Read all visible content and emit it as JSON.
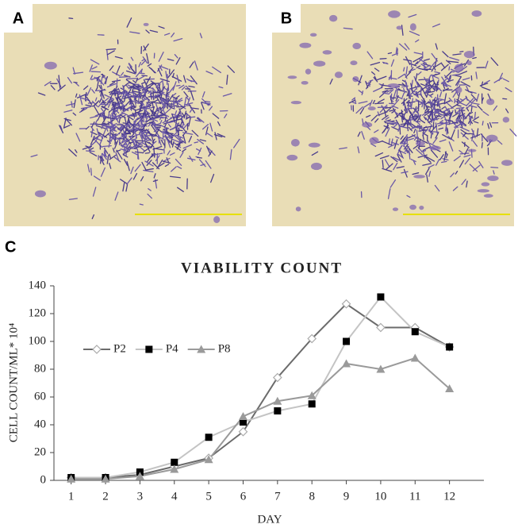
{
  "panel_labels": [
    "A",
    "B",
    "C"
  ],
  "chart_data": {
    "type": "line",
    "title": "VIABILITY COUNT",
    "x_label": "DAY",
    "y_label": "CELL COUNT/ML* 10⁴",
    "x": [
      1,
      2,
      3,
      4,
      5,
      6,
      7,
      8,
      9,
      10,
      11,
      12
    ],
    "xlim": [
      0.5,
      13
    ],
    "xticks": [
      1,
      2,
      3,
      4,
      5,
      6,
      7,
      8,
      9,
      10,
      11,
      12
    ],
    "ylim": [
      0,
      140
    ],
    "yticks": [
      0,
      20,
      40,
      60,
      80,
      100,
      120,
      140
    ],
    "legend": "upper left",
    "series": [
      {
        "name": "P2",
        "color": "#6b6b6b",
        "marker": "diamond",
        "marker_color": "#ffffff",
        "values": [
          2,
          2,
          4,
          10,
          16,
          35,
          74,
          102,
          127,
          110,
          110,
          96
        ]
      },
      {
        "name": "P4",
        "color": "#c4c4c4",
        "marker": "square",
        "marker_color": "#000000",
        "values": [
          2,
          2,
          6,
          13,
          31,
          42,
          50,
          55,
          100,
          132,
          107,
          96
        ]
      },
      {
        "name": "P8",
        "color": "#9a9a9a",
        "marker": "triangle",
        "marker_color": "#9a9a9a",
        "values": [
          1,
          1,
          3,
          8,
          15,
          46,
          57,
          61,
          84,
          80,
          88,
          66
        ]
      }
    ]
  }
}
